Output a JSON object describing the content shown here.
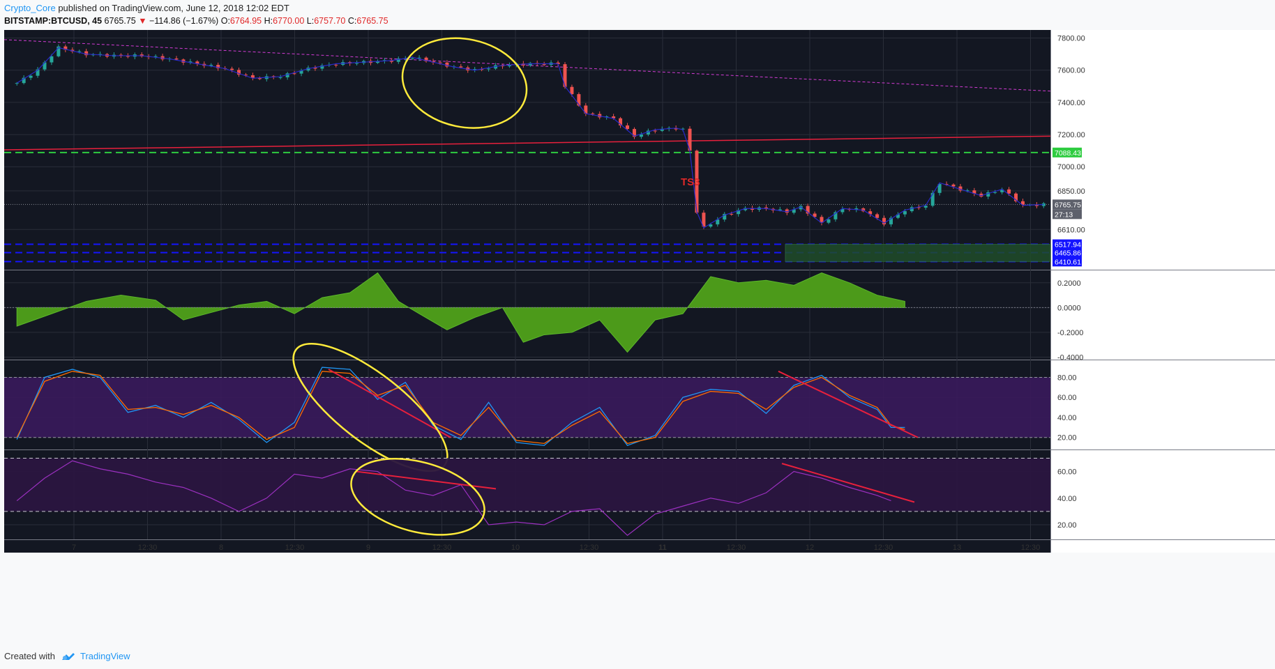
{
  "header": {
    "author": "Crypto_Core",
    "published_text": "published on TradingView.com, June 12, 2018 12:02 EDT",
    "symbol": "BITSTAMP:BTCUSD, 45",
    "last": "6765.75",
    "change": "−114.86 (−1.67%)",
    "o_label": "O:",
    "o": "6764.95",
    "h_label": "H:",
    "h": "6770.00",
    "l_label": "L:",
    "l": "6757.70",
    "c_label": "C:",
    "c": "6765.75"
  },
  "footer": {
    "created": "Created with",
    "brand": "TradingView"
  },
  "colors": {
    "bg": "#131722",
    "up": "#26a69a",
    "down": "#ef5350",
    "ellipse": "#ffeb3b",
    "trend": "#e8203c",
    "support": "#2ecc40",
    "zone": "#1f4d2a",
    "purple_band": "#3a1a5c"
  },
  "chart_data": [
    {
      "type": "candlestick",
      "pane": "price",
      "ylim": [
        6360,
        7850
      ],
      "y_ticks": [
        "7800.00",
        "7600.00",
        "7400.00",
        "7200.00",
        "7000.00",
        "6850.00",
        "6610.00"
      ],
      "x_ticks": [
        "7",
        "12:30",
        "8",
        "12:30",
        "9",
        "12:30",
        "10",
        "12:30",
        "11",
        "12:30",
        "12",
        "12:30",
        "13",
        "12:30"
      ],
      "close_path": [
        [
          0,
          7520
        ],
        [
          3,
          7600
        ],
        [
          6,
          7740
        ],
        [
          10,
          7700
        ],
        [
          14,
          7690
        ],
        [
          18,
          7690
        ],
        [
          22,
          7670
        ],
        [
          26,
          7640
        ],
        [
          30,
          7610
        ],
        [
          34,
          7550
        ],
        [
          38,
          7560
        ],
        [
          42,
          7610
        ],
        [
          46,
          7640
        ],
        [
          50,
          7650
        ],
        [
          54,
          7660
        ],
        [
          57,
          7680
        ],
        [
          60,
          7650
        ],
        [
          63,
          7620
        ],
        [
          66,
          7600
        ],
        [
          70,
          7630
        ],
        [
          74,
          7640
        ],
        [
          78,
          7640
        ],
        [
          79,
          7500
        ],
        [
          82,
          7330
        ],
        [
          86,
          7300
        ],
        [
          89,
          7190
        ],
        [
          92,
          7230
        ],
        [
          95,
          7240
        ],
        [
          96,
          7230
        ],
        [
          97,
          7100
        ],
        [
          98,
          6720
        ],
        [
          99,
          6620
        ],
        [
          102,
          6700
        ],
        [
          105,
          6740
        ],
        [
          108,
          6740
        ],
        [
          111,
          6720
        ],
        [
          113,
          6750
        ],
        [
          116,
          6650
        ],
        [
          119,
          6740
        ],
        [
          122,
          6730
        ],
        [
          125,
          6650
        ],
        [
          128,
          6730
        ],
        [
          131,
          6760
        ],
        [
          133,
          6900
        ],
        [
          136,
          6860
        ],
        [
          139,
          6820
        ],
        [
          142,
          6860
        ],
        [
          145,
          6760
        ],
        [
          148,
          6765
        ]
      ],
      "annotations": [
        {
          "type": "text",
          "text": "TS3",
          "color": "#e02828"
        }
      ],
      "price_labels": [
        {
          "value": "7088.43",
          "bg": "#2ecc40"
        },
        {
          "value": "6765.75",
          "bg": "#5d606b"
        },
        {
          "value": "27:13",
          "bg": "#5d606b"
        },
        {
          "value": "6517.94",
          "bg": "#1414ff"
        },
        {
          "value": "6465.86",
          "bg": "#1414ff"
        },
        {
          "value": "6410.61",
          "bg": "#1414ff"
        }
      ]
    },
    {
      "type": "area",
      "pane": "oscillator",
      "ylim": [
        -0.42,
        0.3
      ],
      "y_ticks": [
        "0.2000",
        "0.0000",
        "-0.2000",
        "-0.4000"
      ],
      "points": [
        [
          0,
          -0.15
        ],
        [
          5,
          -0.05
        ],
        [
          10,
          0.05
        ],
        [
          15,
          0.1
        ],
        [
          20,
          0.06
        ],
        [
          24,
          -0.1
        ],
        [
          28,
          -0.04
        ],
        [
          32,
          0.02
        ],
        [
          36,
          0.05
        ],
        [
          40,
          -0.05
        ],
        [
          44,
          0.08
        ],
        [
          48,
          0.12
        ],
        [
          52,
          0.28
        ],
        [
          55,
          0.05
        ],
        [
          58,
          -0.05
        ],
        [
          62,
          -0.18
        ],
        [
          66,
          -0.08
        ],
        [
          70,
          0.0
        ],
        [
          73,
          -0.28
        ],
        [
          76,
          -0.22
        ],
        [
          80,
          -0.2
        ],
        [
          84,
          -0.1
        ],
        [
          88,
          -0.36
        ],
        [
          92,
          -0.1
        ],
        [
          96,
          -0.05
        ],
        [
          100,
          0.25
        ],
        [
          104,
          0.2
        ],
        [
          108,
          0.22
        ],
        [
          112,
          0.18
        ],
        [
          116,
          0.28
        ],
        [
          120,
          0.2
        ],
        [
          124,
          0.1
        ],
        [
          128,
          0.05
        ]
      ]
    },
    {
      "type": "line",
      "pane": "stochastic",
      "ylim": [
        8,
        97
      ],
      "y_ticks": [
        "80.00",
        "60.00",
        "40.00",
        "20.00"
      ],
      "series": [
        {
          "color": "#2196f3",
          "values": [
            [
              0,
              18
            ],
            [
              4,
              80
            ],
            [
              8,
              88
            ],
            [
              12,
              80
            ],
            [
              16,
              45
            ],
            [
              20,
              52
            ],
            [
              24,
              40
            ],
            [
              28,
              55
            ],
            [
              32,
              38
            ],
            [
              36,
              15
            ],
            [
              40,
              35
            ],
            [
              44,
              90
            ],
            [
              48,
              88
            ],
            [
              52,
              58
            ],
            [
              56,
              75
            ],
            [
              60,
              32
            ],
            [
              64,
              18
            ],
            [
              68,
              55
            ],
            [
              72,
              15
            ],
            [
              76,
              12
            ],
            [
              80,
              35
            ],
            [
              84,
              50
            ],
            [
              88,
              12
            ],
            [
              92,
              22
            ],
            [
              96,
              60
            ],
            [
              100,
              68
            ],
            [
              104,
              66
            ],
            [
              108,
              44
            ],
            [
              112,
              72
            ],
            [
              116,
              82
            ],
            [
              120,
              60
            ],
            [
              124,
              48
            ],
            [
              126,
              30
            ],
            [
              128,
              30
            ]
          ]
        },
        {
          "color": "#ff6d00",
          "values": [
            [
              0,
              20
            ],
            [
              4,
              76
            ],
            [
              8,
              86
            ],
            [
              12,
              82
            ],
            [
              16,
              48
            ],
            [
              20,
              50
            ],
            [
              24,
              43
            ],
            [
              28,
              52
            ],
            [
              32,
              40
            ],
            [
              36,
              18
            ],
            [
              40,
              30
            ],
            [
              44,
              86
            ],
            [
              48,
              84
            ],
            [
              52,
              62
            ],
            [
              56,
              72
            ],
            [
              60,
              35
            ],
            [
              64,
              22
            ],
            [
              68,
              50
            ],
            [
              72,
              17
            ],
            [
              76,
              14
            ],
            [
              80,
              32
            ],
            [
              84,
              46
            ],
            [
              88,
              14
            ],
            [
              92,
              20
            ],
            [
              96,
              56
            ],
            [
              100,
              66
            ],
            [
              104,
              64
            ],
            [
              108,
              48
            ],
            [
              112,
              70
            ],
            [
              116,
              80
            ],
            [
              120,
              62
            ],
            [
              124,
              50
            ],
            [
              126,
              32
            ],
            [
              128,
              28
            ]
          ]
        }
      ]
    },
    {
      "type": "line",
      "pane": "rsi",
      "ylim": [
        9,
        76
      ],
      "y_ticks": [
        "60.00",
        "40.00",
        "20.00"
      ],
      "series": [
        {
          "color": "#9b30c0",
          "values": [
            [
              0,
              38
            ],
            [
              4,
              55
            ],
            [
              8,
              68
            ],
            [
              12,
              62
            ],
            [
              16,
              58
            ],
            [
              20,
              52
            ],
            [
              24,
              48
            ],
            [
              28,
              40
            ],
            [
              32,
              30
            ],
            [
              36,
              40
            ],
            [
              40,
              58
            ],
            [
              44,
              55
            ],
            [
              48,
              62
            ],
            [
              52,
              60
            ],
            [
              56,
              46
            ],
            [
              60,
              42
            ],
            [
              64,
              50
            ],
            [
              68,
              20
            ],
            [
              72,
              22
            ],
            [
              76,
              20
            ],
            [
              80,
              30
            ],
            [
              84,
              32
            ],
            [
              88,
              12
            ],
            [
              92,
              28
            ],
            [
              96,
              34
            ],
            [
              100,
              40
            ],
            [
              104,
              36
            ],
            [
              108,
              44
            ],
            [
              112,
              60
            ],
            [
              116,
              55
            ],
            [
              120,
              48
            ],
            [
              124,
              42
            ],
            [
              126,
              38
            ]
          ]
        }
      ]
    }
  ]
}
